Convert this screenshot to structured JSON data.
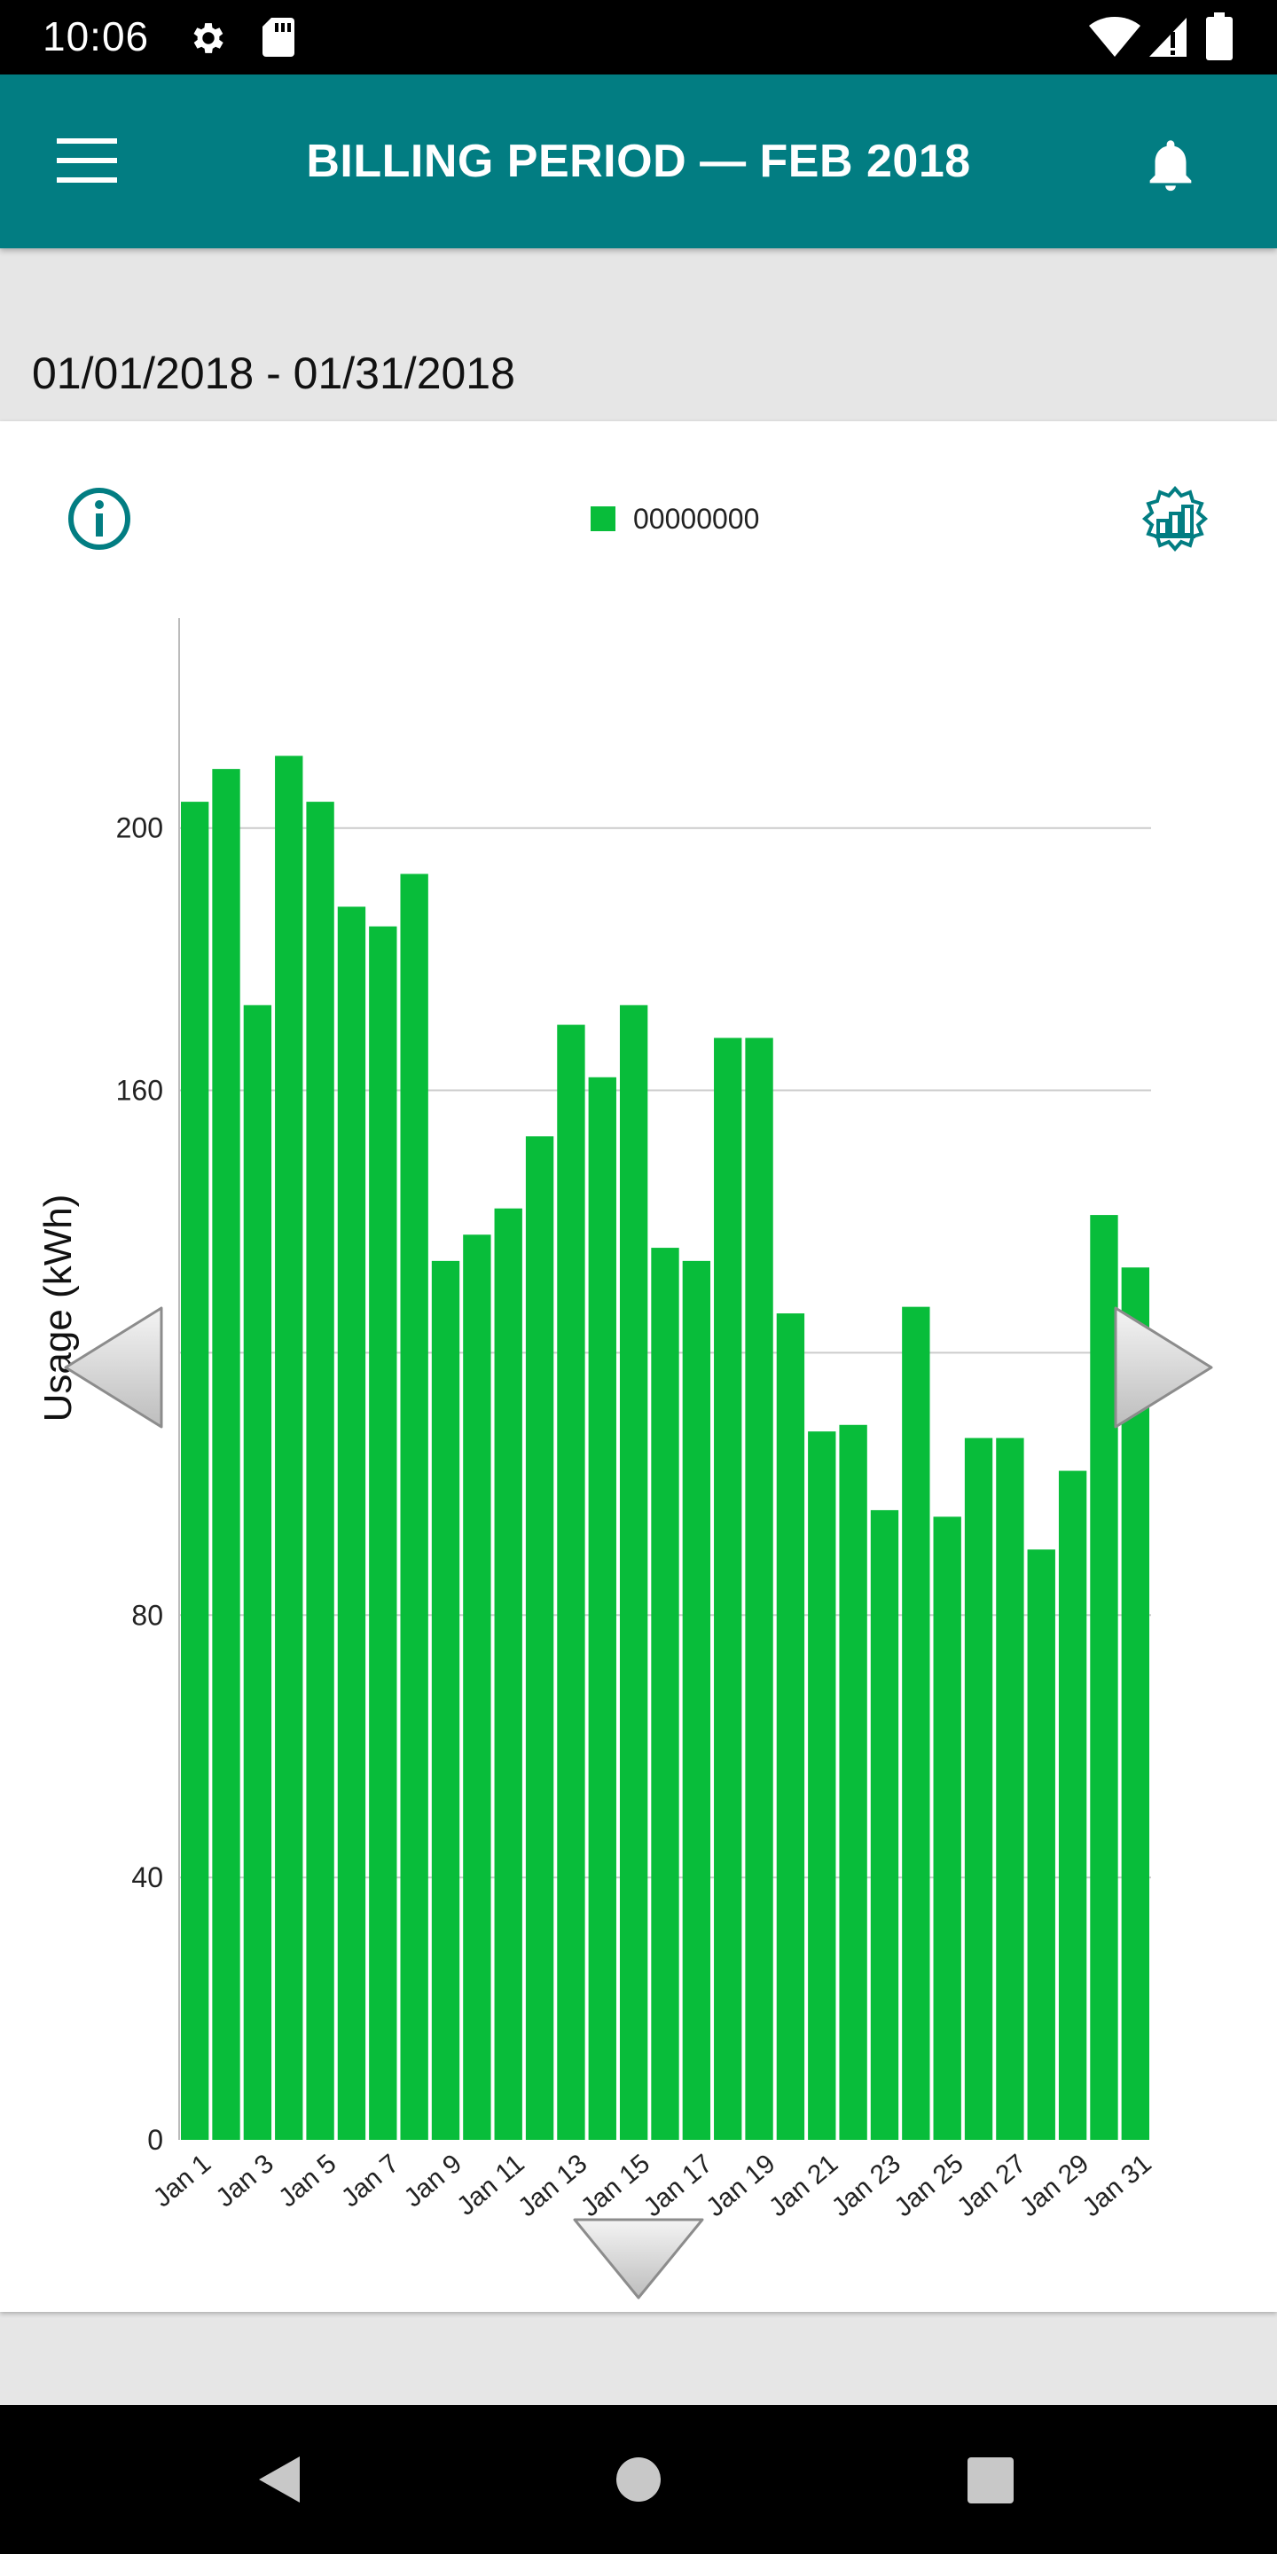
{
  "status_bar": {
    "time": "10:06"
  },
  "app_bar": {
    "title": "BILLING PERIOD  —  FEB 2018"
  },
  "date_range": "01/01/2018 - 01/31/2018",
  "colors": {
    "teal": "#027d82",
    "bar": "#08bd3a",
    "grid": "#cccccc"
  },
  "icons": {
    "status": [
      "gear-icon",
      "sd-card-icon",
      "wifi-icon",
      "cell-signal-icon",
      "battery-icon"
    ],
    "app_bar": [
      "menu-icon",
      "bell-icon"
    ],
    "chart": [
      "info-icon",
      "chart-settings-icon",
      "arrow-left-icon",
      "arrow-right-icon",
      "arrow-down-icon"
    ],
    "nav": [
      "back-icon",
      "home-icon",
      "recents-icon"
    ]
  },
  "chart_data": {
    "type": "bar",
    "legend": [
      "00000000"
    ],
    "ylabel": "Usage (kWh)",
    "xlabel": "",
    "ylim": [
      0,
      232
    ],
    "yticks": [
      0,
      40,
      80,
      120,
      160,
      200
    ],
    "grid": true,
    "legend_position": "top-center",
    "categories": [
      "Jan 1",
      "Jan 2",
      "Jan 3",
      "Jan 4",
      "Jan 5",
      "Jan 6",
      "Jan 7",
      "Jan 8",
      "Jan 9",
      "Jan 10",
      "Jan 11",
      "Jan 12",
      "Jan 13",
      "Jan 14",
      "Jan 15",
      "Jan 16",
      "Jan 17",
      "Jan 18",
      "Jan 19",
      "Jan 20",
      "Jan 21",
      "Jan 22",
      "Jan 23",
      "Jan 24",
      "Jan 25",
      "Jan 26",
      "Jan 27",
      "Jan 28",
      "Jan 29",
      "Jan 30",
      "Jan 31"
    ],
    "x_tick_labels": [
      "Jan 1",
      "Jan 3",
      "Jan 5",
      "Jan 7",
      "Jan 9",
      "Jan 11",
      "Jan 13",
      "Jan 15",
      "Jan 17",
      "Jan 19",
      "Jan 21",
      "Jan 23",
      "Jan 25",
      "Jan 27",
      "Jan 29",
      "Jan 31"
    ],
    "series": [
      {
        "name": "00000000",
        "values": [
          204,
          209,
          173,
          211,
          204,
          188,
          185,
          193,
          134,
          138,
          142,
          153,
          170,
          162,
          173,
          136,
          134,
          168,
          168,
          126,
          108,
          109,
          96,
          127,
          95,
          107,
          107,
          90,
          102,
          141,
          133
        ]
      }
    ]
  }
}
